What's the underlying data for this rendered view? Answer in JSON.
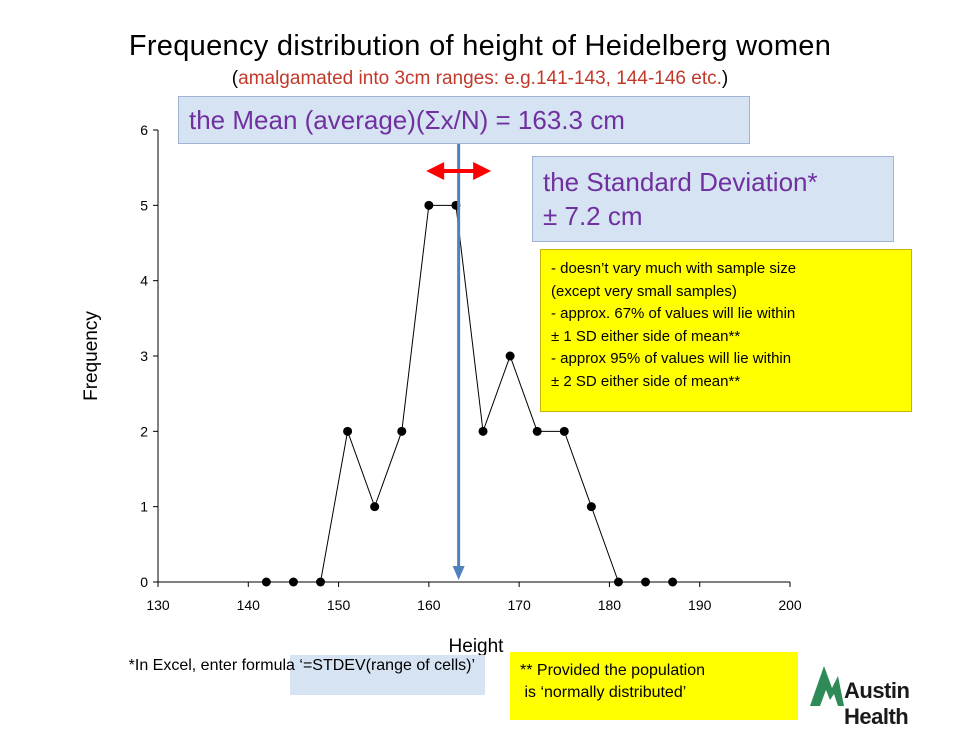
{
  "title": "Frequency distribution of height of Heidelberg women",
  "subtitle_open": "(",
  "subtitle_text": "amalgamated into 3cm ranges: e.g.141-143, 144-146 etc.",
  "subtitle_close": ")",
  "mean_label": "the Mean (average)(Σx/N)  = 163.3 cm",
  "sd_label_line1": "the Standard Deviation*",
  "sd_label_line2": "± 7.2 cm",
  "sd_notes": [
    "- doesn’t vary much with sample size",
    "(except very small samples)",
    "- approx. 67% of values will lie within",
    "± 1 SD either side of mean**",
    "- approx 95% of values will lie within",
    "± 2 SD either side of mean**"
  ],
  "excel_note": "*In Excel, enter formula ‘=STDEV(range of cells)’",
  "population_note_line1": "** Provided the population",
  "population_note_line2": " is ‘normally distributed’",
  "logo_text": "Austin Health",
  "colors": {
    "purple_text": "#7030a0",
    "box_blue": "#d6e3f2",
    "note_yellow": "#ffff00",
    "mean_line": "#4f81bd",
    "sd_arrow": "#ff0000",
    "logo_green": "#2e8b57"
  },
  "chart_data": {
    "type": "line",
    "xlabel": "Height",
    "ylabel": "Frequency",
    "xlim": [
      130,
      200
    ],
    "ylim": [
      0,
      6
    ],
    "x_ticks": [
      130,
      140,
      150,
      160,
      170,
      180,
      190,
      200
    ],
    "y_ticks": [
      0,
      1,
      2,
      3,
      4,
      5,
      6
    ],
    "x": [
      142,
      145,
      148,
      151,
      154,
      157,
      160,
      163,
      166,
      169,
      172,
      175,
      178,
      181,
      184,
      187
    ],
    "y": [
      0,
      0,
      0,
      2,
      1,
      2,
      5,
      5,
      2,
      3,
      2,
      2,
      1,
      0,
      0,
      0
    ],
    "mean": 163.3,
    "sd": 7.2,
    "grid": false,
    "marker": "circle"
  }
}
